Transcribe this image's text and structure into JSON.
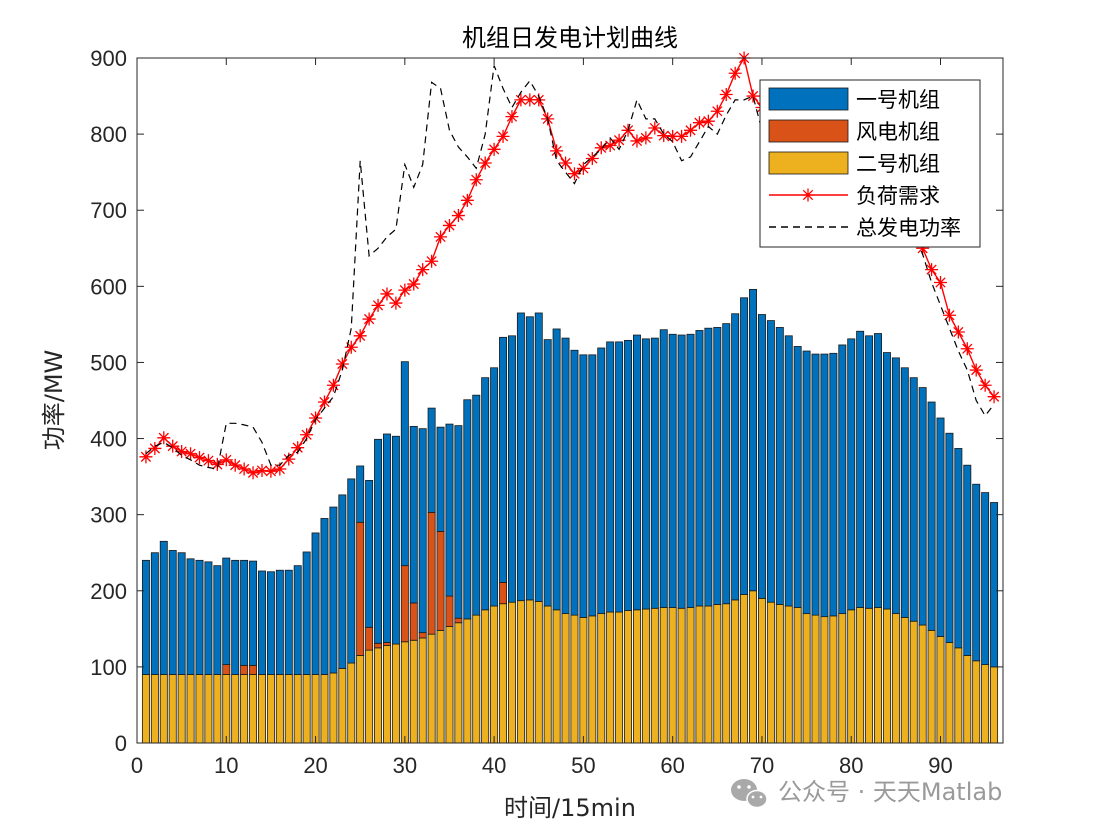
{
  "chart_data": {
    "type": "bar",
    "stacked": true,
    "title": "机组日发电计划曲线",
    "xlabel": "时间/15min",
    "ylabel": "功率/MW",
    "xlim": [
      0,
      97
    ],
    "ylim": [
      0,
      900
    ],
    "xticks": [
      0,
      10,
      20,
      30,
      40,
      50,
      60,
      70,
      80,
      90
    ],
    "yticks": [
      0,
      100,
      200,
      300,
      400,
      500,
      600,
      700,
      800,
      900
    ],
    "legend_location": "top-right",
    "x": [
      1,
      2,
      3,
      4,
      5,
      6,
      7,
      8,
      9,
      10,
      11,
      12,
      13,
      14,
      15,
      16,
      17,
      18,
      19,
      20,
      21,
      22,
      23,
      24,
      25,
      26,
      27,
      28,
      29,
      30,
      31,
      32,
      33,
      34,
      35,
      36,
      37,
      38,
      39,
      40,
      41,
      42,
      43,
      44,
      45,
      46,
      47,
      48,
      49,
      50,
      51,
      52,
      53,
      54,
      55,
      56,
      57,
      58,
      59,
      60,
      61,
      62,
      63,
      64,
      65,
      66,
      67,
      68,
      69,
      70,
      71,
      72,
      73,
      74,
      75,
      76,
      77,
      78,
      79,
      80,
      81,
      82,
      83,
      84,
      85,
      86,
      87,
      88,
      89,
      90,
      91,
      92,
      93,
      94,
      95,
      96
    ],
    "series": [
      {
        "name": "二号机组",
        "kind": "bar",
        "color": "#EDB120",
        "values": [
          90,
          90,
          90,
          90,
          90,
          90,
          90,
          90,
          90,
          90,
          90,
          90,
          90,
          90,
          90,
          90,
          90,
          90,
          90,
          90,
          90,
          92,
          98,
          105,
          115,
          122,
          125,
          128,
          130,
          133,
          135,
          138,
          143,
          148,
          153,
          158,
          163,
          168,
          175,
          180,
          183,
          185,
          187,
          188,
          186,
          180,
          175,
          170,
          168,
          165,
          167,
          170,
          172,
          172,
          174,
          175,
          176,
          177,
          178,
          178,
          177,
          178,
          180,
          180,
          182,
          183,
          188,
          195,
          200,
          190,
          185,
          182,
          180,
          178,
          170,
          168,
          166,
          167,
          170,
          175,
          178,
          177,
          178,
          176,
          170,
          165,
          160,
          155,
          148,
          140,
          132,
          125,
          115,
          108,
          103,
          100
        ]
      },
      {
        "name": "风电机组",
        "kind": "bar",
        "color": "#D95319",
        "values": [
          0,
          0,
          0,
          0,
          0,
          0,
          0,
          0,
          0,
          13,
          0,
          12,
          12,
          0,
          0,
          0,
          0,
          0,
          0,
          0,
          0,
          0,
          0,
          0,
          175,
          30,
          6,
          4,
          0,
          100,
          49,
          7,
          160,
          130,
          40,
          6,
          0,
          0,
          0,
          0,
          28,
          0,
          0,
          0,
          0,
          0,
          0,
          0,
          0,
          0,
          0,
          0,
          0,
          0,
          0,
          0,
          0,
          0,
          0,
          0,
          0,
          0,
          0,
          0,
          0,
          0,
          0,
          0,
          0,
          0,
          0,
          0,
          0,
          0,
          0,
          0,
          0,
          0,
          0,
          0,
          0,
          0,
          0,
          0,
          0,
          0,
          0,
          0,
          0,
          0,
          0,
          0,
          0,
          0,
          0,
          0
        ]
      },
      {
        "name": "一号机组",
        "kind": "bar",
        "color": "#0072BD",
        "values": [
          150,
          160,
          175,
          163,
          160,
          152,
          150,
          148,
          143,
          140,
          150,
          138,
          137,
          136,
          135,
          137,
          137,
          143,
          161,
          186,
          205,
          218,
          228,
          242,
          74,
          193,
          268,
          274,
          273,
          268,
          232,
          268,
          137,
          137,
          226,
          253,
          288,
          289,
          305,
          313,
          322,
          350,
          378,
          372,
          379,
          350,
          369,
          362,
          348,
          345,
          343,
          349,
          355,
          355,
          355,
          361,
          355,
          355,
          365,
          359,
          359,
          359,
          362,
          365,
          364,
          368,
          376,
          390,
          396,
          373,
          370,
          364,
          355,
          343,
          345,
          343,
          345,
          345,
          353,
          356,
          363,
          358,
          360,
          337,
          336,
          328,
          320,
          312,
          300,
          287,
          275,
          262,
          250,
          232,
          226,
          216
        ]
      },
      {
        "name": "负荷需求",
        "kind": "line",
        "color": "#FF0000",
        "marker": "*",
        "values": [
          376,
          387,
          401,
          390,
          383,
          380,
          375,
          371,
          366,
          372,
          365,
          360,
          355,
          358,
          357,
          360,
          373,
          388,
          405,
          427,
          448,
          470,
          498,
          520,
          535,
          557,
          575,
          590,
          578,
          595,
          603,
          622,
          633,
          665,
          680,
          693,
          713,
          740,
          762,
          780,
          797,
          823,
          845,
          845,
          845,
          820,
          778,
          762,
          748,
          755,
          768,
          782,
          785,
          792,
          805,
          791,
          795,
          808,
          798,
          797,
          797,
          805,
          815,
          817,
          830,
          852,
          880,
          900,
          850,
          835,
          820,
          810,
          805,
          795,
          790,
          780,
          775,
          770,
          765,
          772,
          770,
          760,
          755,
          740,
          720,
          710,
          688,
          650,
          622,
          605,
          562,
          540,
          518,
          490,
          470,
          455
        ]
      },
      {
        "name": "总发电功率",
        "kind": "line",
        "color": "#000000",
        "dash": "dashed",
        "values": [
          380,
          390,
          395,
          388,
          378,
          372,
          365,
          362,
          360,
          420,
          420,
          418,
          415,
          395,
          365,
          365,
          378,
          382,
          400,
          425,
          440,
          455,
          490,
          545,
          765,
          640,
          650,
          665,
          675,
          760,
          730,
          760,
          868,
          860,
          805,
          783,
          770,
          755,
          800,
          890,
          860,
          835,
          855,
          870,
          850,
          820,
          765,
          750,
          735,
          760,
          770,
          780,
          795,
          780,
          805,
          845,
          820,
          820,
          800,
          790,
          765,
          770,
          790,
          810,
          800,
          825,
          845,
          845,
          850,
          805,
          795,
          780,
          775,
          770,
          760,
          760,
          765,
          770,
          770,
          765,
          760,
          755,
          758,
          745,
          735,
          710,
          670,
          642,
          605,
          575,
          545,
          515,
          490,
          450,
          430,
          445
        ]
      }
    ]
  },
  "watermark": {
    "text": "公众号 · 天天Matlab",
    "icon": "wechat-icon"
  }
}
